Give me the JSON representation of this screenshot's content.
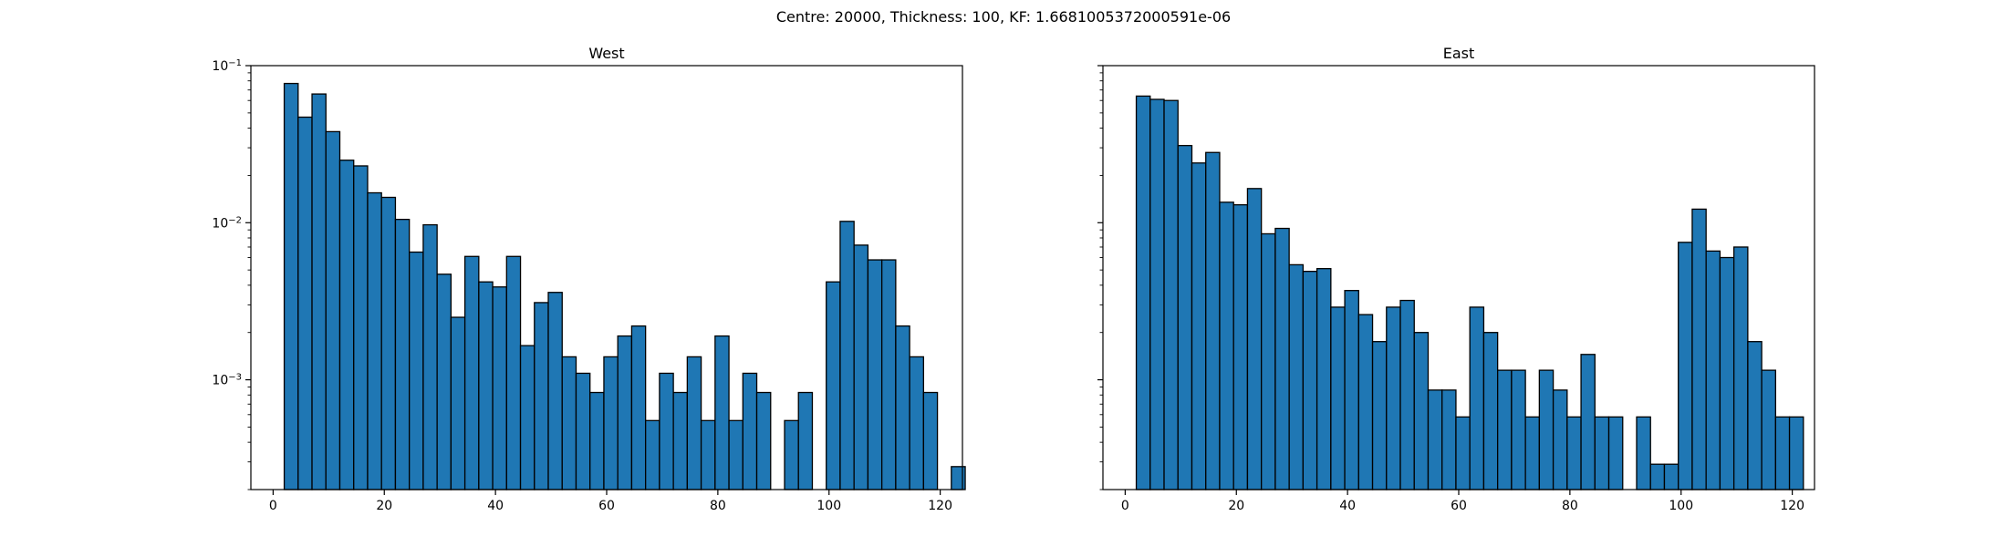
{
  "figure": {
    "suptitle": "Centre: 20000, Thickness: 100, KF: 1.6681005372000591e-06"
  },
  "colors": {
    "bar_fill": "#1f77b4",
    "bar_edge": "#000000",
    "axes": "#000000",
    "background": "#ffffff"
  },
  "chart_data": [
    {
      "type": "bar",
      "title": "West",
      "xlabel": "",
      "ylabel": "",
      "yscale": "log",
      "xlim": [
        -4,
        124
      ],
      "ylim": [
        0.0002,
        0.1
      ],
      "xticks": [
        0,
        20,
        40,
        60,
        80,
        100,
        120
      ],
      "yticks": [
        {
          "value": 0.001,
          "base": "10",
          "exp": "−3"
        },
        {
          "value": 0.01,
          "base": "10",
          "exp": "−2"
        },
        {
          "value": 0.1,
          "base": "10",
          "exp": "−1"
        }
      ],
      "bin_start": 2,
      "bin_width": 2.5,
      "values": [
        0.077,
        0.047,
        0.066,
        0.038,
        0.025,
        0.023,
        0.0155,
        0.0145,
        0.0105,
        0.0065,
        0.0097,
        0.0047,
        0.0025,
        0.0061,
        0.0042,
        0.0039,
        0.0061,
        0.00165,
        0.0031,
        0.0036,
        0.0014,
        0.0011,
        0.00083,
        0.0014,
        0.0019,
        0.0022,
        0.00055,
        0.0011,
        0.00083,
        0.0014,
        0.00055,
        0.0019,
        0.00055,
        0.0011,
        0.00083,
        0,
        0.00055,
        0.00083,
        0,
        0.0042,
        0.0102,
        0.0072,
        0.0058,
        0.0058,
        0.0022,
        0.0014,
        0.00083,
        0,
        0.00028
      ]
    },
    {
      "type": "bar",
      "title": "East",
      "xlabel": "",
      "ylabel": "",
      "yscale": "log",
      "xlim": [
        -4,
        124
      ],
      "ylim": [
        0.0002,
        0.1
      ],
      "xticks": [
        0,
        20,
        40,
        60,
        80,
        100,
        120
      ],
      "yticks": [],
      "bin_start": 2,
      "bin_width": 2.5,
      "values": [
        0.064,
        0.061,
        0.06,
        0.031,
        0.024,
        0.028,
        0.0135,
        0.013,
        0.0165,
        0.0085,
        0.0092,
        0.0054,
        0.0049,
        0.0051,
        0.0029,
        0.0037,
        0.0026,
        0.00175,
        0.0029,
        0.0032,
        0.002,
        0.00086,
        0.00086,
        0.00058,
        0.0029,
        0.002,
        0.00115,
        0.00115,
        0.00058,
        0.00115,
        0.00086,
        0.00058,
        0.00145,
        0.00058,
        0.00058,
        0,
        0.00058,
        0.00029,
        0.00029,
        0.0075,
        0.0122,
        0.0066,
        0.006,
        0.007,
        0.00175,
        0.00115,
        0.00058,
        0.00058
      ]
    }
  ]
}
